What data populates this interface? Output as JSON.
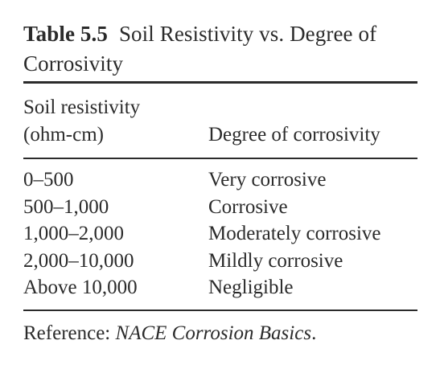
{
  "table": {
    "label": "Table 5.5",
    "title": "Soil Resistivity vs. Degree of Corrosivity",
    "columns": {
      "resistivity_line1": "Soil resistivity",
      "resistivity_line2": "(ohm-cm)",
      "corrosivity": "Degree of corrosivity"
    },
    "rows": [
      {
        "resistivity": "0–500",
        "corrosivity": "Very corrosive"
      },
      {
        "resistivity": "500–1,000",
        "corrosivity": "Corrosive"
      },
      {
        "resistivity": "1,000–2,000",
        "corrosivity": "Moderately corrosive"
      },
      {
        "resistivity": "2,000–10,000",
        "corrosivity": "Mildly corrosive"
      },
      {
        "resistivity": "Above 10,000",
        "corrosivity": "Negligible"
      }
    ],
    "reference": {
      "prefix": "Reference: ",
      "source": "NACE Corrosion Basics",
      "suffix": "."
    }
  }
}
